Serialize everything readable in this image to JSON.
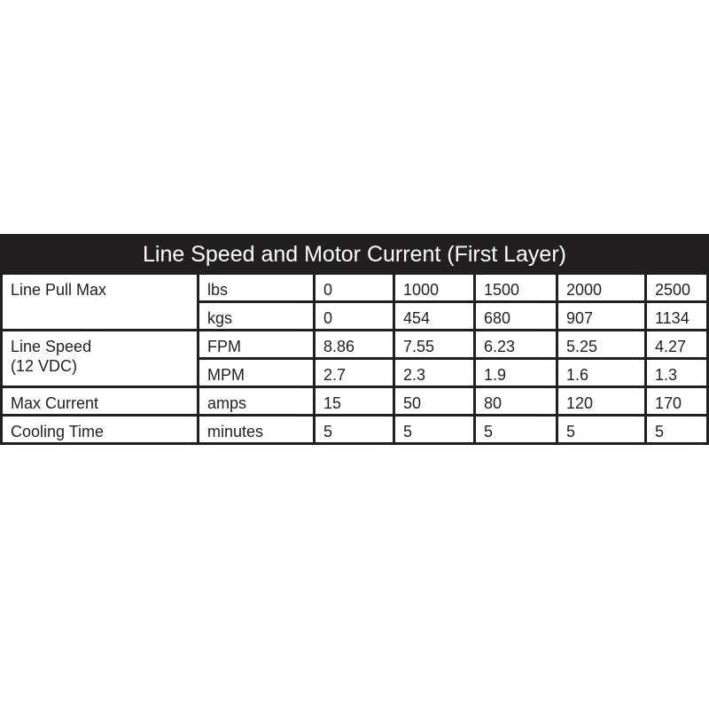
{
  "title": "Line Speed and Motor Current (First Layer)",
  "rows": [
    {
      "label": "Line Pull Max",
      "label2": "",
      "units": [
        {
          "unit": "lbs",
          "values": [
            "0",
            "1000",
            "1500",
            "2000",
            "2500"
          ]
        },
        {
          "unit": "kgs",
          "values": [
            "0",
            "454",
            "680",
            "907",
            "1134"
          ]
        }
      ]
    },
    {
      "label": "Line Speed",
      "label2": "(12 VDC)",
      "units": [
        {
          "unit": "FPM",
          "values": [
            "8.86",
            "7.55",
            "6.23",
            "5.25",
            "4.27"
          ]
        },
        {
          "unit": "MPM",
          "values": [
            "2.7",
            "2.3",
            "1.9",
            "1.6",
            "1.3"
          ]
        }
      ]
    },
    {
      "label": "Max Current",
      "units": [
        {
          "unit": "amps",
          "values": [
            "15",
            "50",
            "80",
            "120",
            "170"
          ]
        }
      ]
    },
    {
      "label": "Cooling Time",
      "units": [
        {
          "unit": "minutes",
          "values": [
            "5",
            "5",
            "5",
            "5",
            "5"
          ]
        }
      ]
    }
  ]
}
